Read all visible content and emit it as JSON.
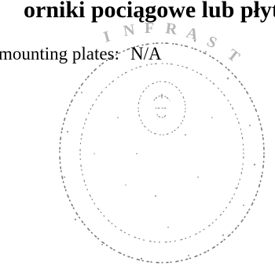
{
  "document": {
    "heading_fragment": "orniki pociągowe lub płyt",
    "field_label": "mounting plates:",
    "field_value": "N/A"
  },
  "stamp": {
    "lettering": "INFRAST",
    "ink_color": "#7a7a7a"
  }
}
